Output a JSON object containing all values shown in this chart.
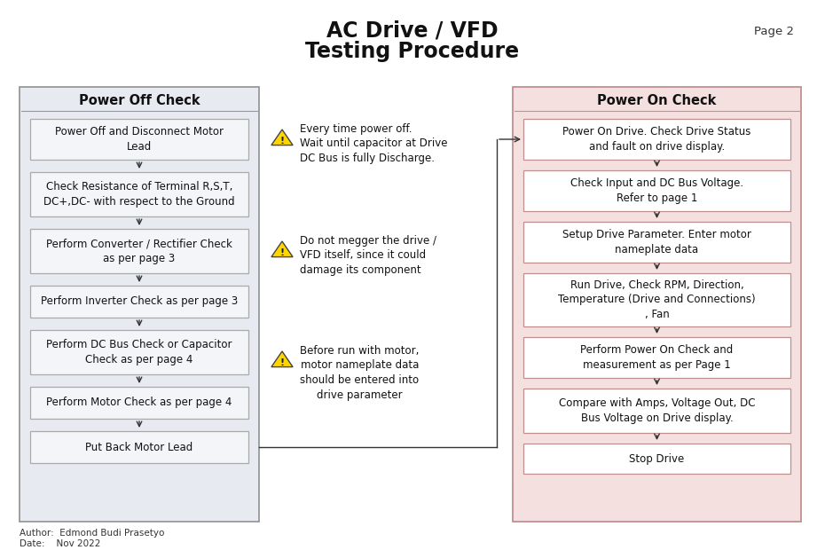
{
  "title_line1": "AC Drive / VFD",
  "title_line2": "Testing Procedure",
  "page_label": "Page 2",
  "author_label": "Author:  Edmond Budi Prasetyo",
  "date_label": "Date:    Nov 2022",
  "fig_bg": "#ffffff",
  "power_off": {
    "title": "Power Off Check",
    "outer_bg": "#e8eaf2",
    "outer_edge": "#999999",
    "step_bg": "#f4f5f9",
    "step_edge": "#aaaaaa",
    "steps": [
      "Power Off and Disconnect Motor\nLead",
      "Check Resistance of Terminal R,S,T,\nDC+,DC- with respect to the Ground",
      "Perform Converter / Rectifier Check\nas per page 3",
      "Perform Inverter Check as per page 3",
      "Perform DC Bus Check or Capacitor\nCheck as per page 4",
      "Perform Motor Check as per page 4",
      "Put Back Motor Lead"
    ]
  },
  "power_on": {
    "title": "Power On Check",
    "outer_bg": "#f5e0e0",
    "outer_edge": "#c09090",
    "step_bg": "#ffffff",
    "step_edge": "#c09090",
    "steps": [
      "Power On Drive. Check Drive Status\nand fault on drive display.",
      "Check Input and DC Bus Voltage.\nRefer to page 1",
      "Setup Drive Parameter. Enter motor\nnameplate data",
      "Run Drive, Check RPM, Direction,\nTemperature (Drive and Connections)\n, Fan",
      "Perform Power On Check and\nmeasurement as per Page 1",
      "Compare with Amps, Voltage Out, DC\nBus Voltage on Drive display.",
      "Stop Drive"
    ]
  },
  "warnings": [
    "Every time power off.\nWait until capacitor at Drive\nDC Bus is fully Discharge.",
    "Do not megger the drive /\nVFD itself, since it could\ndamage its component",
    "Before run with motor,\nmotor nameplate data\nshould be entered into\ndrive parameter"
  ]
}
